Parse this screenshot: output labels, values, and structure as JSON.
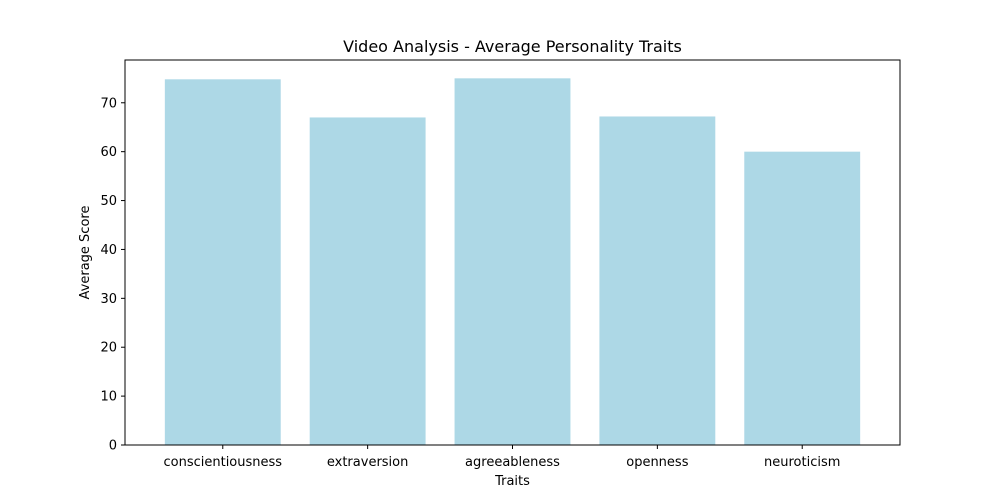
{
  "chart_data": {
    "type": "bar",
    "title": "Video Analysis - Average Personality Traits",
    "xlabel": "Traits",
    "ylabel": "Average Score",
    "categories": [
      "conscientiousness",
      "extraversion",
      "agreeableness",
      "openness",
      "neuroticism"
    ],
    "values": [
      74.8,
      67.0,
      75.0,
      67.2,
      60.0
    ],
    "ylim": [
      0,
      78.75
    ],
    "yticks": [
      0,
      10,
      20,
      30,
      40,
      50,
      60,
      70
    ],
    "bar_color": "#add8e6",
    "grid": false
  }
}
